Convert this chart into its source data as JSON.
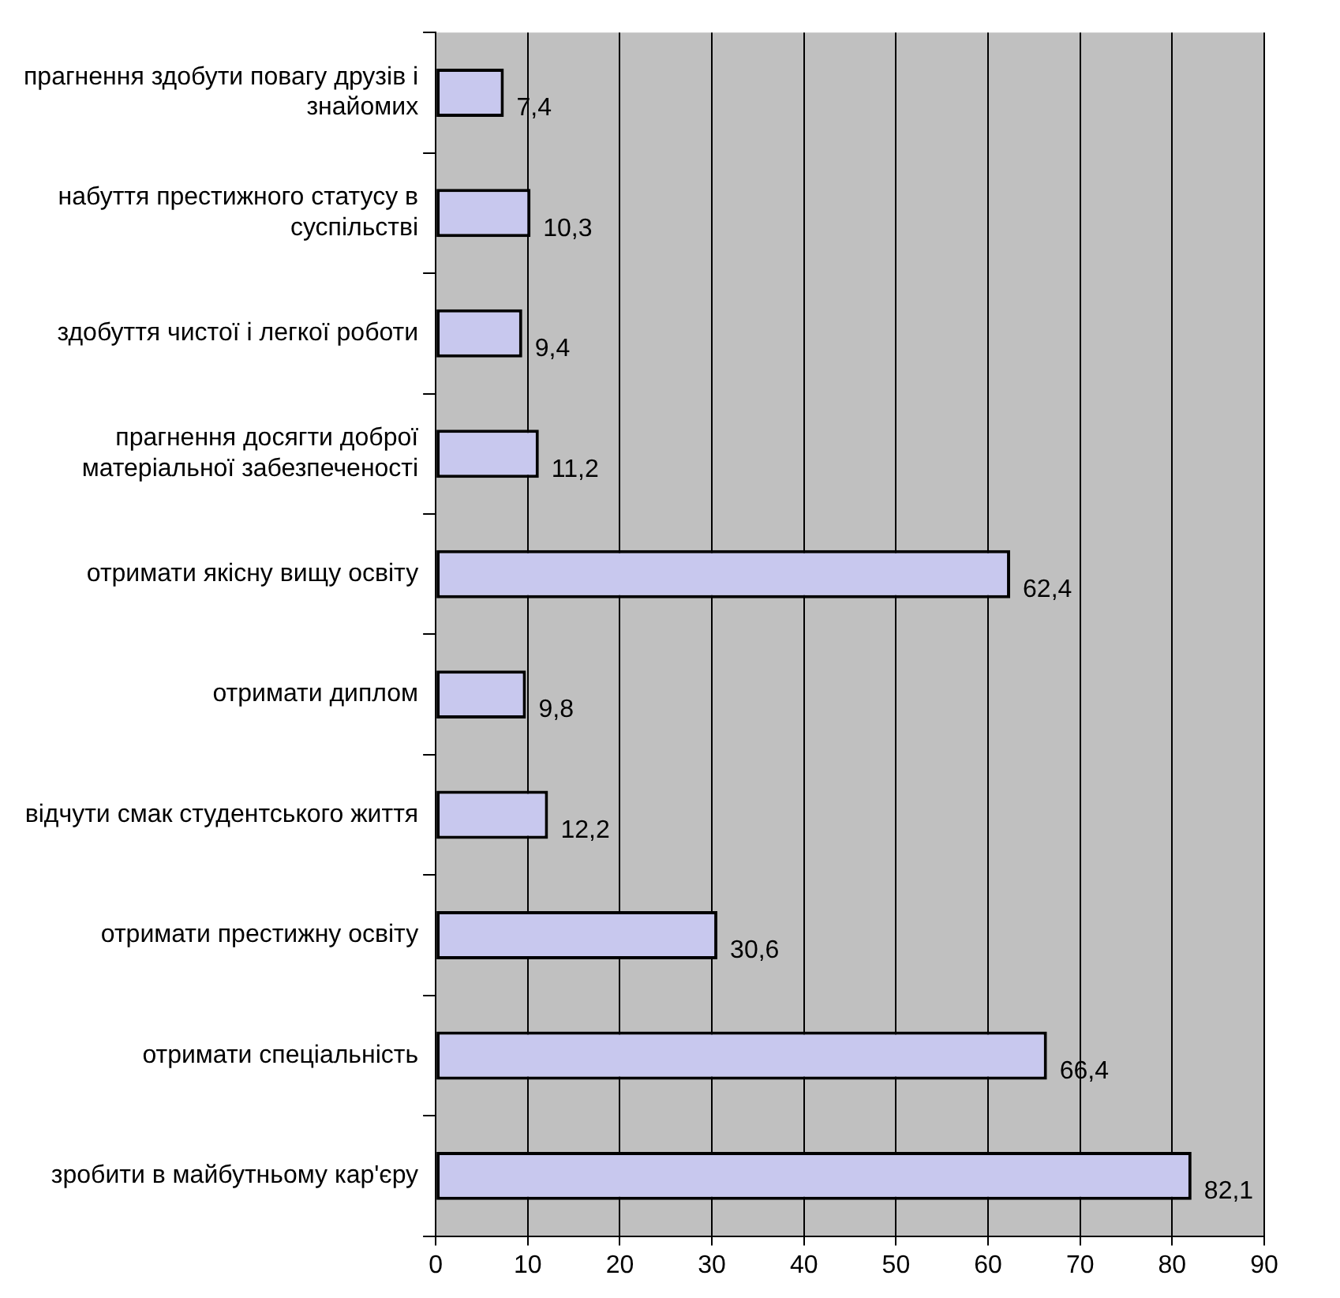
{
  "chart_data": {
    "type": "bar",
    "orientation": "horizontal",
    "categories": [
      "прагнення здобути повагу друзів і знайомих",
      "набуття престижного статусу в суспільстві",
      "здобуття чистої і легкої роботи",
      "прагнення досягти доброї матеріальної забезпеченості",
      "отримати якісну вищу освіту",
      "отримати диплом",
      "відчути смак студентського життя",
      "отримати престижну освіту",
      "отримати спеціальність",
      "зробити в майбутньому кар'єру"
    ],
    "values": [
      7.4,
      10.3,
      9.4,
      11.2,
      62.4,
      9.8,
      12.2,
      30.6,
      66.4,
      82.1
    ],
    "value_labels": [
      "7,4",
      "10,3",
      "9,4",
      "11,2",
      "62,4",
      "9,8",
      "12,2",
      "30,6",
      "66,4",
      "82,1"
    ],
    "color": "#c8c8ee",
    "xlim": [
      0,
      90
    ],
    "xticks": [
      0,
      10,
      20,
      30,
      40,
      50,
      60,
      70,
      80,
      90
    ],
    "grid": "x"
  }
}
